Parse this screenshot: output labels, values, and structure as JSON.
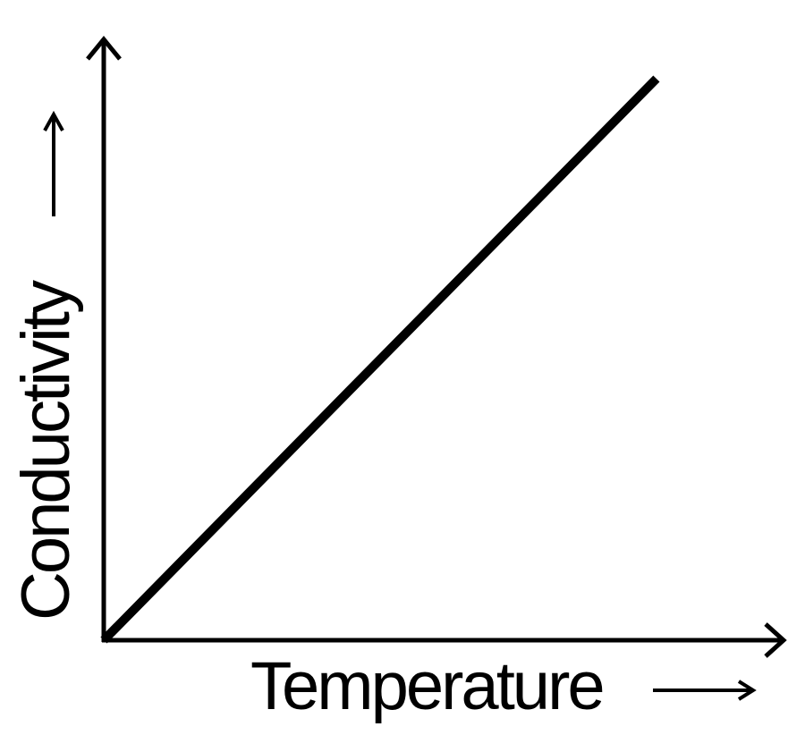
{
  "chart_data": {
    "type": "line",
    "title": "",
    "xlabel": "Temperature",
    "ylabel": "Conductivity",
    "x": [
      0,
      1
    ],
    "series": [
      {
        "values": [
          0,
          1
        ]
      }
    ],
    "xlim": [
      0,
      1.23
    ],
    "ylim": [
      0,
      1.07
    ],
    "grid": false,
    "legend": "none",
    "ticks": false,
    "line_color": "#000000",
    "axis_color": "#000000"
  }
}
